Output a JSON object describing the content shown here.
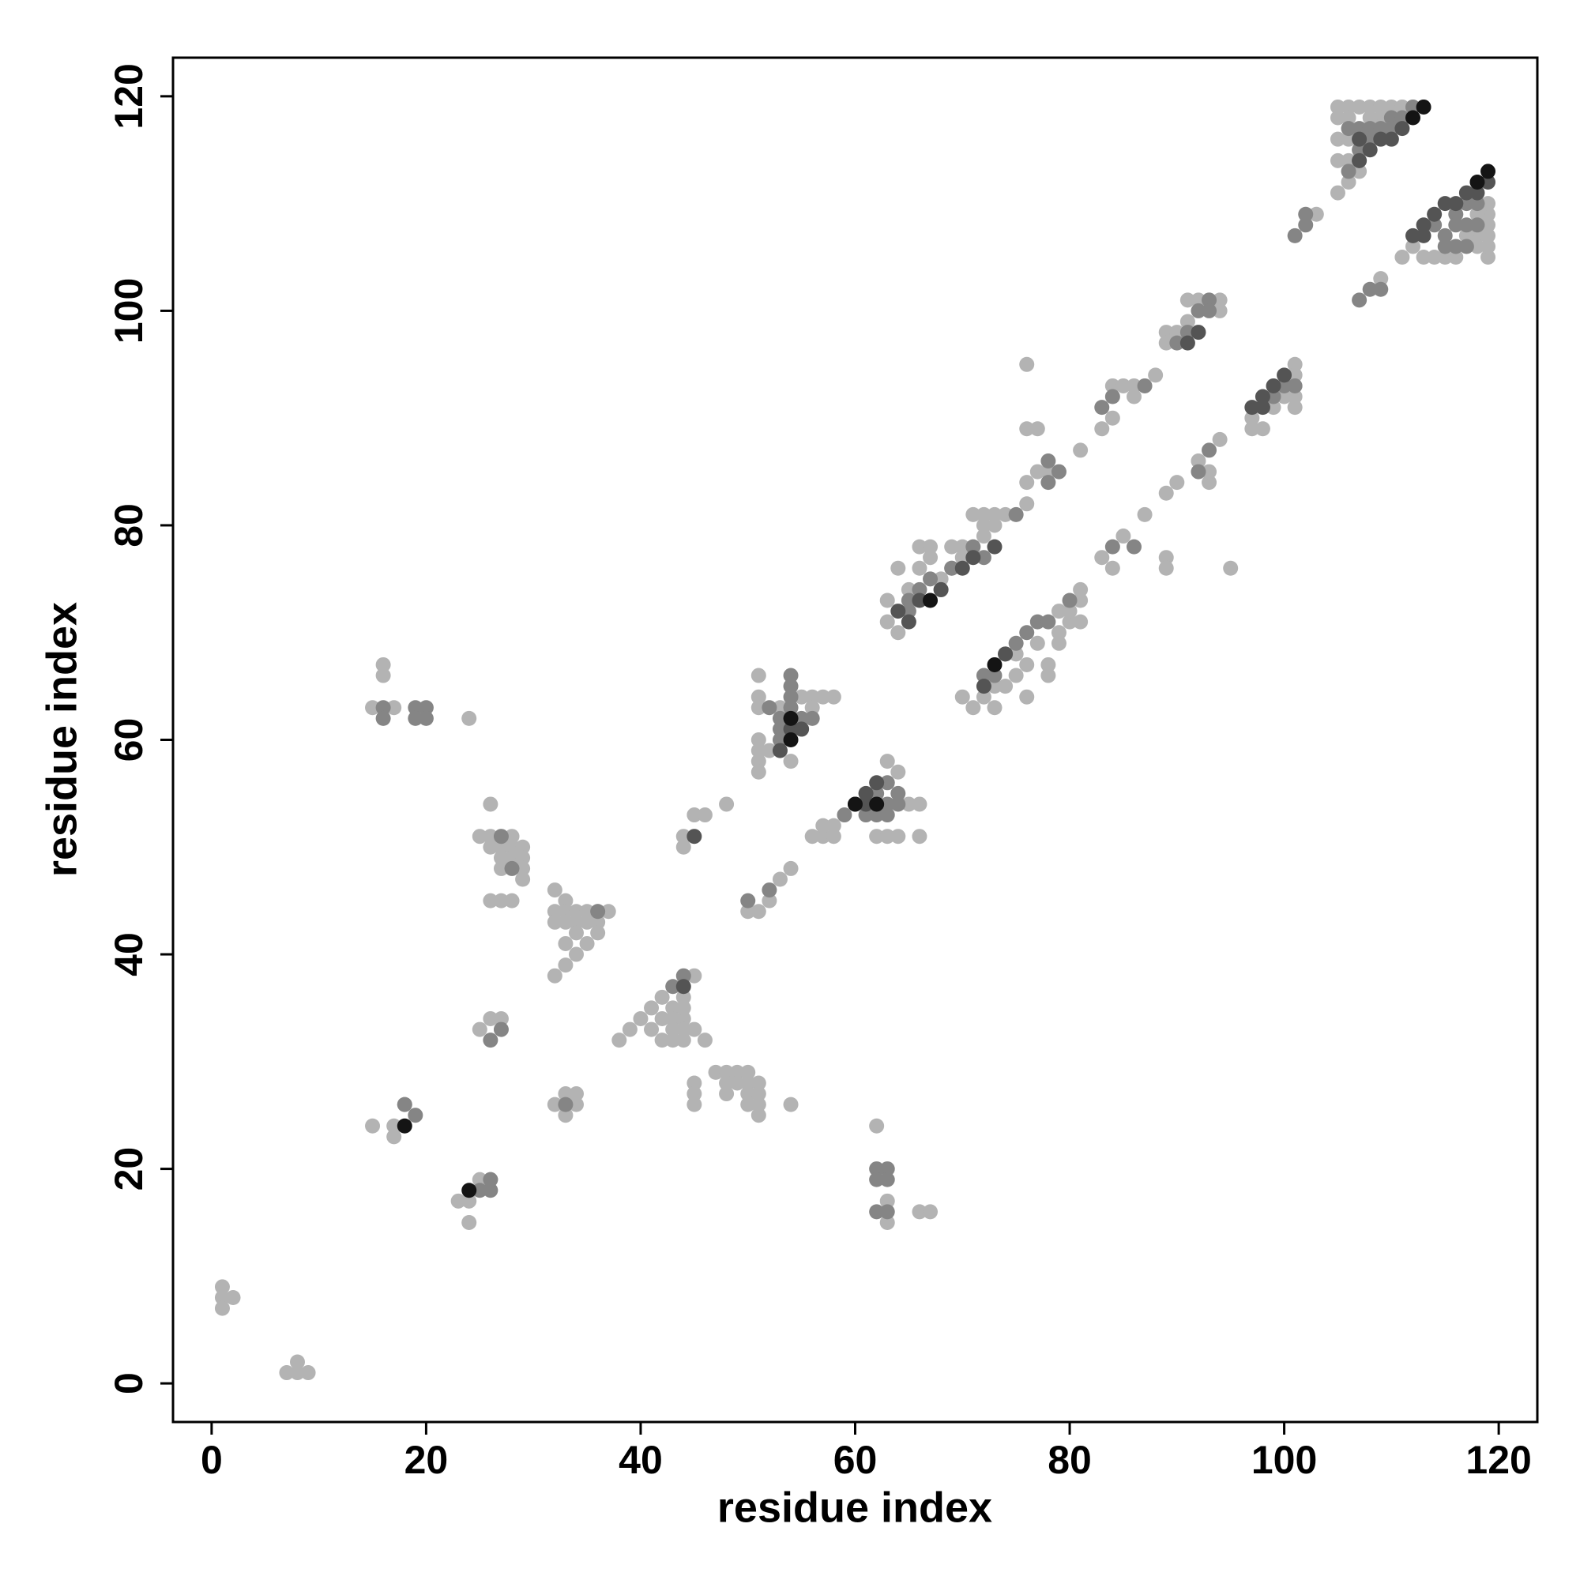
{
  "chart_data": {
    "type": "scatter",
    "x_label": "residue index",
    "y_label": "residue index",
    "xlim": [
      -3.6,
      123.6
    ],
    "ylim": [
      -3.6,
      123.6
    ],
    "xticks": [
      0,
      20,
      40,
      60,
      80,
      100,
      120
    ],
    "yticks": [
      0,
      20,
      40,
      60,
      80,
      100,
      120
    ],
    "grid": false,
    "series": [
      {
        "color": "#b3b3b3",
        "x": [
          1,
          1,
          2,
          1,
          7,
          8,
          8,
          9,
          15,
          17,
          17,
          18,
          15,
          16,
          16,
          17,
          24,
          23,
          24,
          24,
          25,
          26,
          25,
          26,
          27,
          28,
          26,
          27,
          28,
          29,
          27,
          28,
          29,
          27,
          29,
          29,
          26,
          26,
          27,
          28,
          25,
          26,
          27,
          32,
          32,
          33,
          33,
          34,
          35,
          36,
          37,
          32,
          33,
          34,
          35,
          36,
          34,
          36,
          33,
          35,
          34,
          33,
          32,
          32,
          33,
          34,
          34,
          33,
          38,
          39,
          40,
          41,
          42,
          41,
          42,
          43,
          43,
          44,
          43,
          44,
          42,
          43,
          44,
          45,
          46,
          45,
          44,
          44,
          45,
          45,
          45,
          47,
          48,
          49,
          50,
          48,
          49,
          50,
          51,
          48,
          50,
          51,
          50,
          51,
          51,
          50,
          54,
          44,
          44,
          45,
          46,
          48,
          51,
          52,
          53,
          54,
          51,
          51,
          51,
          51,
          51,
          52,
          51,
          51,
          53,
          55,
          56,
          57,
          58,
          56,
          54,
          56,
          57,
          57,
          58,
          58,
          62,
          63,
          64,
          63,
          64,
          65,
          66,
          66,
          62,
          63,
          63,
          66,
          67,
          63,
          63,
          64,
          64,
          65,
          66,
          67,
          66,
          67,
          68,
          69,
          69,
          70,
          70,
          71,
          72,
          72,
          73,
          72,
          73,
          74,
          76,
          76,
          77,
          76,
          77,
          76,
          78,
          81,
          83,
          84,
          84,
          85,
          86,
          86,
          88,
          89,
          89,
          90,
          91,
          91,
          92,
          93,
          94,
          94,
          70,
          71,
          72,
          73,
          73,
          74,
          75,
          76,
          75,
          76,
          77,
          78,
          78,
          79,
          79,
          80,
          80,
          81,
          81,
          81,
          79,
          83,
          84,
          85,
          87,
          89,
          89,
          89,
          90,
          95,
          92,
          93,
          93,
          94,
          97,
          97,
          98,
          99,
          100,
          100,
          101,
          101,
          101,
          101,
          103,
          105,
          106,
          107,
          105,
          106,
          105,
          106,
          105,
          106,
          105,
          106,
          107,
          108,
          109,
          110,
          111,
          109,
          108,
          111,
          112,
          113,
          114,
          115,
          116,
          119,
          119,
          119,
          118,
          117,
          119,
          119,
          119,
          118,
          118,
          109
        ],
        "y": [
          9,
          8,
          8,
          7,
          1,
          2,
          1,
          1,
          24,
          24,
          23,
          26,
          63,
          67,
          66,
          63,
          62,
          17,
          17,
          15,
          19,
          19,
          51,
          51,
          51,
          51,
          50,
          50,
          50,
          50,
          49,
          49,
          49,
          48,
          48,
          47,
          54,
          45,
          45,
          45,
          33,
          34,
          34,
          46,
          44,
          45,
          44,
          44,
          44,
          44,
          44,
          43,
          43,
          43,
          43,
          43,
          42,
          42,
          41,
          41,
          40,
          39,
          38,
          26,
          27,
          27,
          26,
          25,
          32,
          33,
          34,
          35,
          36,
          33,
          34,
          35,
          34,
          34,
          33,
          33,
          32,
          32,
          32,
          33,
          32,
          38,
          36,
          35,
          28,
          27,
          26,
          29,
          29,
          29,
          29,
          28,
          28,
          28,
          28,
          27,
          27,
          27,
          26,
          26,
          25,
          44,
          26,
          51,
          50,
          53,
          53,
          54,
          44,
          45,
          47,
          48,
          66,
          64,
          63,
          60,
          59,
          59,
          58,
          57,
          63,
          64,
          64,
          64,
          64,
          63,
          58,
          51,
          51,
          52,
          52,
          51,
          51,
          51,
          51,
          58,
          57,
          54,
          54,
          51,
          24,
          17,
          15,
          16,
          16,
          73,
          71,
          70,
          76,
          74,
          78,
          78,
          76,
          77,
          75,
          76,
          78,
          78,
          77,
          81,
          81,
          80,
          81,
          79,
          80,
          81,
          95,
          89,
          89,
          84,
          85,
          82,
          85,
          87,
          89,
          90,
          93,
          93,
          92,
          93,
          94,
          98,
          97,
          98,
          99,
          101,
          101,
          101,
          101,
          100,
          64,
          63,
          64,
          63,
          65,
          65,
          66,
          64,
          68,
          67,
          69,
          67,
          66,
          69,
          70,
          71,
          72,
          73,
          74,
          71,
          72,
          77,
          76,
          79,
          81,
          77,
          76,
          83,
          84,
          76,
          86,
          84,
          85,
          88,
          90,
          89,
          89,
          91,
          92,
          93,
          95,
          92,
          91,
          94,
          109,
          119,
          119,
          119,
          118,
          118,
          116,
          116,
          114,
          114,
          111,
          112,
          113,
          119,
          119,
          119,
          119,
          118,
          118,
          105,
          106,
          105,
          105,
          105,
          105,
          105,
          106,
          107,
          107,
          107,
          108,
          109,
          110,
          109,
          106,
          103
        ]
      },
      {
        "color": "#858585",
        "x": [
          16,
          19,
          20,
          19,
          20,
          16,
          18,
          19,
          26,
          27,
          26,
          25,
          26,
          27,
          28,
          36,
          44,
          43,
          33,
          62,
          63,
          62,
          63,
          62,
          63,
          50,
          52,
          53,
          53,
          54,
          54,
          54,
          54,
          55,
          55,
          56,
          53,
          52,
          59,
          61,
          62,
          63,
          63,
          64,
          62,
          63,
          64,
          65,
          65,
          66,
          67,
          68,
          69,
          71,
          72,
          75,
          78,
          78,
          79,
          83,
          84,
          87,
          91,
          92,
          93,
          93,
          90,
          72,
          73,
          74,
          75,
          76,
          77,
          78,
          80,
          84,
          86,
          92,
          93,
          99,
          100,
          101,
          101,
          102,
          102,
          107,
          108,
          109,
          106,
          107,
          108,
          108,
          107,
          106,
          107,
          109,
          110,
          110,
          112,
          111,
          114,
          115,
          116,
          117,
          116,
          117,
          118,
          118,
          115,
          116,
          117
        ],
        "y": [
          63,
          63,
          63,
          62,
          62,
          62,
          26,
          25,
          32,
          33,
          18,
          18,
          19,
          51,
          48,
          44,
          38,
          37,
          26,
          20,
          20,
          19,
          19,
          16,
          16,
          45,
          46,
          62,
          61,
          66,
          65,
          64,
          63,
          62,
          61,
          62,
          60,
          63,
          53,
          53,
          53,
          53,
          54,
          54,
          55,
          56,
          55,
          73,
          72,
          74,
          75,
          74,
          76,
          78,
          77,
          81,
          84,
          86,
          85,
          91,
          92,
          93,
          98,
          100,
          101,
          100,
          97,
          66,
          66,
          68,
          69,
          70,
          71,
          71,
          73,
          78,
          78,
          85,
          87,
          92,
          93,
          93,
          107,
          108,
          109,
          101,
          102,
          102,
          117,
          117,
          117,
          116,
          115,
          113,
          114,
          117,
          118,
          117,
          119,
          118,
          108,
          107,
          109,
          110,
          108,
          108,
          108,
          110,
          106,
          106,
          106
        ]
      },
      {
        "color": "#545454",
        "x": [
          44,
          45,
          53,
          54,
          55,
          60,
          61,
          61,
          62,
          64,
          65,
          66,
          68,
          70,
          71,
          73,
          72,
          74,
          98,
          91,
          92,
          97,
          98,
          99,
          100,
          107,
          108,
          109,
          110,
          111,
          107,
          113,
          114,
          115,
          116,
          117,
          118,
          119,
          112,
          113
        ],
        "y": [
          37,
          51,
          59,
          61,
          61,
          54,
          54,
          55,
          56,
          72,
          71,
          73,
          74,
          76,
          77,
          78,
          65,
          68,
          92,
          97,
          98,
          91,
          91,
          93,
          94,
          116,
          115,
          116,
          116,
          117,
          114,
          108,
          109,
          110,
          110,
          111,
          111,
          112,
          107,
          107
        ]
      },
      {
        "color": "#141414",
        "x": [
          18,
          24,
          54,
          54,
          62,
          60,
          67,
          73,
          112,
          113,
          118,
          119
        ],
        "y": [
          24,
          18,
          62,
          60,
          54,
          54,
          73,
          67,
          118,
          119,
          112,
          113
        ]
      }
    ]
  }
}
